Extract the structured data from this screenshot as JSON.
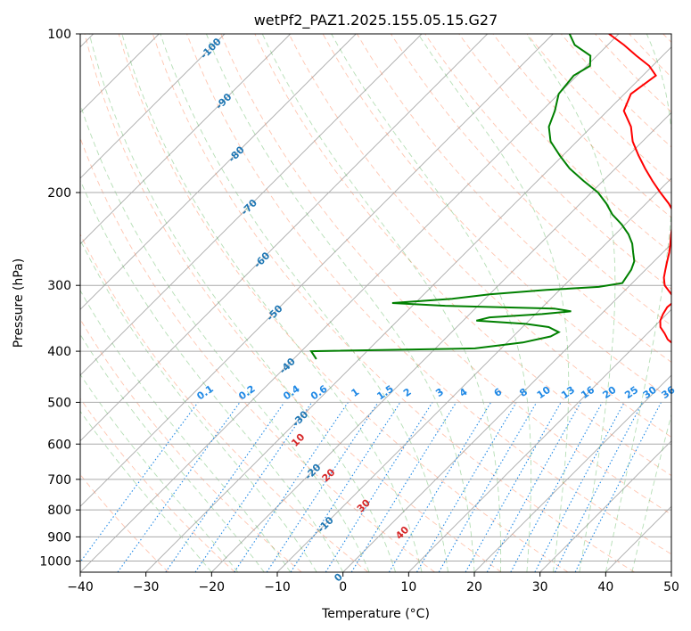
{
  "chart_data": {
    "type": "line",
    "title": "wetPf2_PAZ1.2025.155.05.15.G27",
    "xlabel": "Temperature (°C)",
    "ylabel": "Pressure (hPa)",
    "xlim": [
      -40,
      50
    ],
    "ylim": [
      1050,
      100
    ],
    "y_scale": "log",
    "x_ticks": [
      -40,
      -30,
      -20,
      -10,
      0,
      10,
      20,
      30,
      40,
      50
    ],
    "y_ticks": [
      100,
      200,
      300,
      400,
      500,
      600,
      700,
      800,
      900,
      1000
    ],
    "grid": true,
    "skew": 45,
    "colors": {
      "temperature": "#ff0000",
      "dewpoint": "#008000",
      "mixing_ratio": "#1e88e5",
      "dry_adiabat": "#ff7f50",
      "moist_adiabat": "#2ca02c",
      "isotherm_label": "#1f77b4",
      "moist_label": "#d62728",
      "grid": "#aaaaaa"
    },
    "series": [
      {
        "key": "temperature",
        "points": [
          [
            414,
            23.5
          ],
          [
            400,
            19.6
          ],
          [
            390,
            16.0
          ],
          [
            380,
            14.0
          ],
          [
            370,
            12.6
          ],
          [
            360,
            11.0
          ],
          [
            350,
            10.0
          ],
          [
            340,
            9.4
          ],
          [
            330,
            9.0
          ],
          [
            320,
            9.2
          ],
          [
            310,
            7.3
          ],
          [
            300,
            5.3
          ],
          [
            290,
            4.0
          ],
          [
            280,
            3.0
          ],
          [
            270,
            2.0
          ],
          [
            260,
            1.0
          ],
          [
            250,
            -0.2
          ],
          [
            240,
            -1.5
          ],
          [
            230,
            -2.8
          ],
          [
            220,
            -4.0
          ],
          [
            210,
            -6.5
          ],
          [
            200,
            -9.5
          ],
          [
            190,
            -12.5
          ],
          [
            180,
            -15.5
          ],
          [
            170,
            -18.5
          ],
          [
            160,
            -21.5
          ],
          [
            150,
            -24.0
          ],
          [
            140,
            -27.5
          ],
          [
            130,
            -29.0
          ],
          [
            120,
            -28.0
          ],
          [
            115,
            -30.5
          ],
          [
            110,
            -34.0
          ],
          [
            105,
            -37.5
          ],
          [
            100,
            -41.5
          ]
        ]
      },
      {
        "key": "dewpoint",
        "points": [
          [
            414,
            -36.5
          ],
          [
            400,
            -38.5
          ],
          [
            395,
            -14.0
          ],
          [
            385,
            -7.6
          ],
          [
            375,
            -4.3
          ],
          [
            368,
            -3.7
          ],
          [
            360,
            -6.0
          ],
          [
            355,
            -10.0
          ],
          [
            350,
            -18.0
          ],
          [
            345,
            -16.5
          ],
          [
            340,
            -9.0
          ],
          [
            336,
            -5.0
          ],
          [
            332,
            -8.0
          ],
          [
            328,
            -25.0
          ],
          [
            324,
            -33.5
          ],
          [
            318,
            -25.0
          ],
          [
            312,
            -20.0
          ],
          [
            306,
            -12.0
          ],
          [
            302,
            -4.5
          ],
          [
            297,
            -1.5
          ],
          [
            280,
            -2.2
          ],
          [
            270,
            -3.0
          ],
          [
            260,
            -4.5
          ],
          [
            250,
            -6.0
          ],
          [
            240,
            -8.0
          ],
          [
            230,
            -10.5
          ],
          [
            220,
            -13.5
          ],
          [
            210,
            -16.0
          ],
          [
            200,
            -19.0
          ],
          [
            190,
            -23.0
          ],
          [
            180,
            -27.0
          ],
          [
            170,
            -30.5
          ],
          [
            160,
            -34.0
          ],
          [
            150,
            -36.5
          ],
          [
            140,
            -38.0
          ],
          [
            130,
            -40.0
          ],
          [
            120,
            -40.5
          ],
          [
            115,
            -39.5
          ],
          [
            110,
            -41.0
          ],
          [
            105,
            -45.0
          ],
          [
            100,
            -47.5
          ]
        ]
      }
    ],
    "mixing_ratio_labels": [
      "0.1",
      "0.2",
      "0.4",
      "0.6",
      "1",
      "1.5",
      "2",
      "3",
      "4",
      "6",
      "8",
      "10",
      "13",
      "16",
      "20",
      "25",
      "30",
      "36"
    ],
    "isotherm_labels": [
      "-100",
      "-90",
      "-80",
      "-70",
      "-60",
      "-50",
      "-40",
      "-30",
      "-20",
      "-10",
      "0"
    ],
    "moist_labels": [
      "10",
      "20",
      "30",
      "40"
    ]
  }
}
